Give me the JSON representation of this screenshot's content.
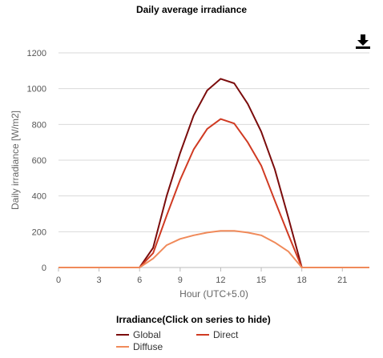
{
  "chart_data": {
    "type": "line",
    "title": "Daily average irradiance",
    "xlabel": "Hour (UTC+5.0)",
    "ylabel": "Daily irradiance [W/m2]",
    "xlim": [
      0,
      23
    ],
    "ylim": [
      0,
      1200
    ],
    "xticks": [
      0,
      3,
      6,
      9,
      12,
      15,
      18,
      21
    ],
    "yticks": [
      0,
      200,
      400,
      600,
      800,
      1000,
      1200
    ],
    "grid": true,
    "legend_title": "Irradiance(Click on series to hide)",
    "legend_position": "bottom",
    "x": [
      0,
      1,
      2,
      3,
      4,
      5,
      6,
      7,
      8,
      9,
      10,
      11,
      12,
      13,
      14,
      15,
      16,
      17,
      18,
      19,
      20,
      21,
      22,
      23
    ],
    "series": [
      {
        "name": "Global",
        "color": "#7b0c0c",
        "values": [
          0,
          0,
          0,
          0,
          0,
          0,
          0,
          110,
          400,
          640,
          850,
          990,
          1055,
          1030,
          915,
          760,
          550,
          280,
          0,
          0,
          0,
          0,
          0,
          0
        ]
      },
      {
        "name": "Direct",
        "color": "#d03a22",
        "values": [
          0,
          0,
          0,
          0,
          0,
          0,
          0,
          80,
          290,
          490,
          660,
          775,
          830,
          805,
          700,
          570,
          375,
          185,
          0,
          0,
          0,
          0,
          0,
          0
        ]
      },
      {
        "name": "Diffuse",
        "color": "#f08a5a",
        "values": [
          0,
          0,
          0,
          0,
          0,
          0,
          0,
          50,
          125,
          160,
          180,
          195,
          205,
          205,
          195,
          180,
          140,
          90,
          0,
          0,
          0,
          0,
          0,
          0
        ]
      }
    ]
  },
  "icons": {
    "download": "download-icon"
  }
}
